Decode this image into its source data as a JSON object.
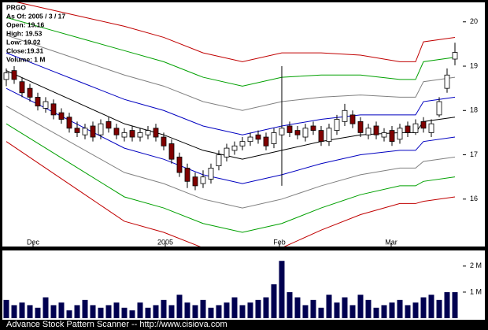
{
  "header": {
    "symbol": "PRGO",
    "lines": [
      "As Of: 2005 / 3 / 17",
      "Open: 19.16",
      "High: 19.53",
      "Low: 19.02",
      "Close:19.31",
      "Volume: 1 M"
    ]
  },
  "footer": "Advance Stock Pattern Scanner -- http://www.cisiova.com",
  "chart_data": [
    {
      "type": "candlestick",
      "x": [
        0,
        1,
        2,
        3,
        4,
        5,
        6,
        7,
        8,
        9,
        10,
        11,
        12,
        13,
        14,
        15,
        16,
        17,
        18,
        19,
        20,
        21,
        22,
        23,
        24,
        25,
        26,
        27,
        28,
        29,
        30,
        31,
        32,
        33,
        34,
        35,
        36,
        37,
        38,
        39,
        40,
        41,
        42,
        43,
        44,
        45,
        46,
        47,
        48,
        49,
        50,
        51,
        52,
        53,
        54,
        55,
        56,
        57
      ],
      "open": [
        18.7,
        18.9,
        18.65,
        18.5,
        18.3,
        18.05,
        18.15,
        17.95,
        17.85,
        17.6,
        17.45,
        17.65,
        17.45,
        17.75,
        17.6,
        17.4,
        17.55,
        17.4,
        17.45,
        17.6,
        17.4,
        17.25,
        16.95,
        16.7,
        16.5,
        16.35,
        16.45,
        16.75,
        16.95,
        17.1,
        17.2,
        17.3,
        17.45,
        17.4,
        17.25,
        17.45,
        17.65,
        17.55,
        17.4,
        17.65,
        17.55,
        17.3,
        17.55,
        17.75,
        17.9,
        17.75,
        17.45,
        17.65,
        17.4,
        17.55,
        17.35,
        17.65,
        17.5,
        17.75,
        17.5,
        17.9,
        18.5,
        19.16
      ],
      "high": [
        18.95,
        19.0,
        18.75,
        18.6,
        18.4,
        18.3,
        18.25,
        18.05,
        17.95,
        17.75,
        17.7,
        17.75,
        17.8,
        17.85,
        17.7,
        17.6,
        17.65,
        17.6,
        17.65,
        17.7,
        17.5,
        17.35,
        17.05,
        16.8,
        16.6,
        16.65,
        16.8,
        17.1,
        17.25,
        17.3,
        17.4,
        17.5,
        17.55,
        17.5,
        17.6,
        19.0,
        17.75,
        17.65,
        17.7,
        17.75,
        17.65,
        17.7,
        17.9,
        18.15,
        18.0,
        17.85,
        17.7,
        17.75,
        17.6,
        17.65,
        17.7,
        17.75,
        17.8,
        17.85,
        17.8,
        18.3,
        18.95,
        19.53
      ],
      "low": [
        18.55,
        18.6,
        18.3,
        18.2,
        18.0,
        17.95,
        17.8,
        17.7,
        17.5,
        17.4,
        17.35,
        17.3,
        17.35,
        17.5,
        17.35,
        17.3,
        17.3,
        17.3,
        17.35,
        17.3,
        17.1,
        16.8,
        16.5,
        16.25,
        16.2,
        16.25,
        16.35,
        16.65,
        16.85,
        17.0,
        17.1,
        17.2,
        17.25,
        17.1,
        17.15,
        16.3,
        17.4,
        17.35,
        17.3,
        17.45,
        17.2,
        17.2,
        17.45,
        17.65,
        17.6,
        17.4,
        17.35,
        17.35,
        17.3,
        17.2,
        17.25,
        17.4,
        17.45,
        17.5,
        17.4,
        17.85,
        18.4,
        19.02
      ],
      "close": [
        18.85,
        18.7,
        18.4,
        18.3,
        18.1,
        18.2,
        17.9,
        17.8,
        17.6,
        17.5,
        17.6,
        17.4,
        17.7,
        17.6,
        17.45,
        17.5,
        17.4,
        17.5,
        17.55,
        17.4,
        17.2,
        16.9,
        16.6,
        16.4,
        16.3,
        16.5,
        16.7,
        17.0,
        17.15,
        17.2,
        17.3,
        17.4,
        17.35,
        17.2,
        17.5,
        17.6,
        17.5,
        17.45,
        17.6,
        17.55,
        17.3,
        17.6,
        17.8,
        18.0,
        17.7,
        17.5,
        17.6,
        17.45,
        17.5,
        17.3,
        17.6,
        17.5,
        17.7,
        17.6,
        17.7,
        18.2,
        18.8,
        19.31
      ],
      "up_color": "#ffffff",
      "down_color": "#800000",
      "band_x": [
        0,
        5,
        10,
        15,
        20,
        25,
        30,
        35,
        40,
        45,
        50,
        52,
        53,
        57
      ],
      "bands": [
        {
          "color": "#c00000",
          "values": [
            20.5,
            20.3,
            20.1,
            19.9,
            19.65,
            19.3,
            19.1,
            19.3,
            19.3,
            19.25,
            19.1,
            19.1,
            19.55,
            19.65
          ]
        },
        {
          "color": "#00a000",
          "values": [
            20.1,
            19.85,
            19.6,
            19.35,
            19.1,
            18.75,
            18.55,
            18.75,
            18.8,
            18.8,
            18.7,
            18.7,
            19.1,
            19.2
          ]
        },
        {
          "color": "#808080",
          "values": [
            19.7,
            19.4,
            19.1,
            18.8,
            18.55,
            18.2,
            18.0,
            18.2,
            18.3,
            18.35,
            18.3,
            18.3,
            18.65,
            18.75
          ]
        },
        {
          "color": "#0000c0",
          "values": [
            19.3,
            18.95,
            18.6,
            18.25,
            18.0,
            17.65,
            17.45,
            17.65,
            17.8,
            17.9,
            17.9,
            17.9,
            18.2,
            18.3
          ]
        },
        {
          "color": "#000000",
          "values": [
            18.9,
            18.5,
            18.1,
            17.7,
            17.45,
            17.1,
            16.9,
            17.1,
            17.3,
            17.45,
            17.5,
            17.5,
            17.75,
            17.85
          ]
        },
        {
          "color": "#0000c0",
          "values": [
            18.5,
            18.05,
            17.6,
            17.15,
            16.9,
            16.55,
            16.35,
            16.55,
            16.8,
            17.0,
            17.1,
            17.1,
            17.3,
            17.4
          ]
        },
        {
          "color": "#808080",
          "values": [
            18.1,
            17.6,
            17.1,
            16.6,
            16.35,
            16.0,
            15.8,
            16.0,
            16.3,
            16.55,
            16.7,
            16.7,
            16.85,
            16.95
          ]
        },
        {
          "color": "#00a000",
          "values": [
            17.7,
            17.15,
            16.6,
            16.05,
            15.8,
            15.45,
            15.25,
            15.45,
            15.8,
            16.1,
            16.3,
            16.3,
            16.4,
            16.5
          ]
        },
        {
          "color": "#c00000",
          "values": [
            17.3,
            16.7,
            16.1,
            15.5,
            15.25,
            14.9,
            14.7,
            14.9,
            15.3,
            15.65,
            15.9,
            15.9,
            15.95,
            16.05
          ]
        }
      ],
      "xlim": [
        -0.5,
        58
      ],
      "ylim": [
        14.93,
        20.44
      ],
      "xticks": [
        {
          "value": 3.4,
          "label": "Dec"
        },
        {
          "value": 20.2,
          "label": "2005"
        },
        {
          "value": 34.7,
          "label": "Feb"
        },
        {
          "value": 48.9,
          "label": "Mar"
        }
      ],
      "yticks": [
        16,
        17,
        18,
        19,
        20
      ]
    },
    {
      "type": "bar",
      "color": "#000050",
      "values": [
        0.7,
        0.5,
        0.6,
        0.5,
        0.4,
        0.8,
        0.5,
        0.6,
        0.3,
        0.5,
        0.7,
        0.5,
        0.4,
        0.5,
        0.6,
        0.4,
        0.3,
        0.6,
        0.4,
        0.5,
        0.7,
        0.5,
        0.9,
        0.6,
        0.5,
        0.7,
        0.4,
        0.5,
        0.6,
        0.8,
        0.5,
        0.6,
        0.7,
        0.8,
        1.3,
        2.2,
        1.0,
        0.8,
        0.5,
        0.7,
        0.4,
        0.9,
        0.6,
        0.8,
        0.5,
        0.9,
        0.7,
        0.4,
        0.5,
        0.6,
        0.7,
        0.5,
        0.6,
        0.8,
        0.9,
        0.7,
        1.0,
        1.0
      ],
      "ylim": [
        0,
        2.6
      ],
      "yticks": [
        {
          "value": 1,
          "label": "1 M"
        },
        {
          "value": 2,
          "label": "2 M"
        }
      ]
    }
  ]
}
